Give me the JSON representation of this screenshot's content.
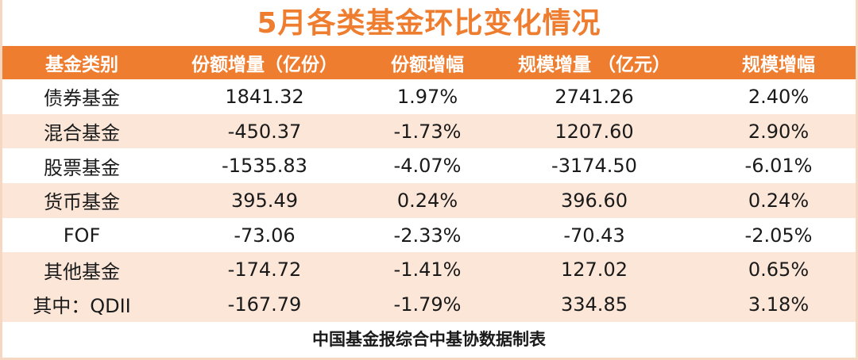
{
  "title": "5月各类基金环比变化情况",
  "colors": {
    "accent": "#ee7d2f",
    "row_shade": "#fbe6d8"
  },
  "table": {
    "headers": [
      "基金类别",
      "份额增量（亿份）",
      "份额增幅",
      "规模增量 （亿元）",
      "规模增幅"
    ],
    "rows": [
      {
        "category": "债券基金",
        "share_change": "1841.32",
        "share_growth": "1.97%",
        "scale_change": "2741.26",
        "scale_growth": "2.40%",
        "shaded": false
      },
      {
        "category": "混合基金",
        "share_change": "-450.37",
        "share_growth": "-1.73%",
        "scale_change": "1207.60",
        "scale_growth": "2.90%",
        "shaded": true
      },
      {
        "category": "股票基金",
        "share_change": "-1535.83",
        "share_growth": "-4.07%",
        "scale_change": "-3174.50",
        "scale_growth": "-6.01%",
        "shaded": false
      },
      {
        "category": "货币基金",
        "share_change": "395.49",
        "share_growth": "0.24%",
        "scale_change": "396.60",
        "scale_growth": "0.24%",
        "shaded": true
      },
      {
        "category": "FOF",
        "share_change": "-73.06",
        "share_growth": "-2.33%",
        "scale_change": "-70.43",
        "scale_growth": "-2.05%",
        "shaded": false
      },
      {
        "category": "其他基金",
        "share_change": "-174.72",
        "share_growth": "-1.41%",
        "scale_change": "127.02",
        "scale_growth": "0.65%",
        "shaded": true
      },
      {
        "category": "其中：QDII",
        "share_change": "-167.79",
        "share_growth": "-1.79%",
        "scale_change": "334.85",
        "scale_growth": "3.18%",
        "shaded": true
      }
    ]
  },
  "footer": "中国基金报综合中基协数据制表"
}
